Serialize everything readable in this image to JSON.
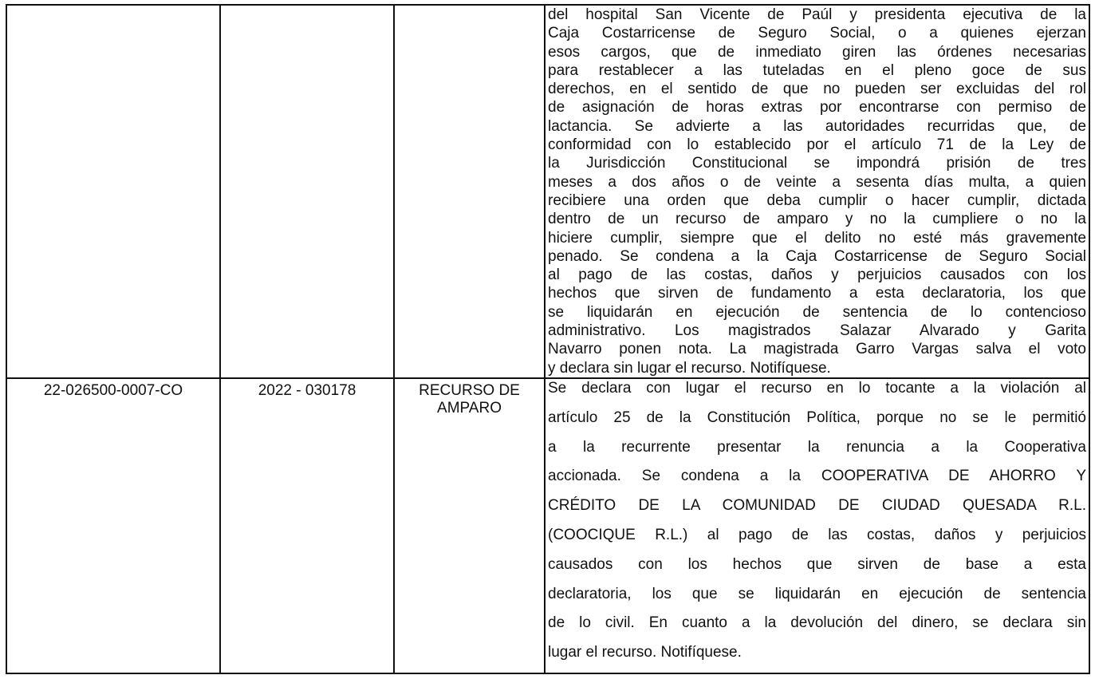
{
  "table": {
    "rows": [
      {
        "ruling_lines": [
          "del hospital San Vicente de Paúl y presidenta ejecutiva de la",
          "Caja Costarricense de Seguro Social, o a quienes ejerzan",
          "esos cargos, que de inmediato giren las órdenes necesarias",
          "para restablecer a las tuteladas en el pleno goce de sus",
          "derechos, en el sentido de que no pueden ser excluidas del rol",
          "de asignación de horas extras por encontrarse con permiso de",
          "lactancia. Se advierte a las autoridades recurridas que, de",
          "conformidad con lo establecido por el artículo 71 de la Ley de",
          "la Jurisdicción Constitucional se impondrá prisión de tres",
          "meses a dos años o de veinte a sesenta días multa, a quien",
          "recibiere una orden que deba cumplir o hacer cumplir, dictada",
          "dentro de un recurso de amparo y no la cumpliere o no la",
          "hiciere cumplir, siempre que el delito no esté más gravemente",
          "penado. Se condena a la Caja Costarricense de Seguro Social",
          "al pago de las costas, daños y perjuicios causados con los",
          "hechos que sirven de fundamento a esta declaratoria, los que",
          "se liquidarán en ejecución de sentencia de lo contencioso",
          "administrativo. Los magistrados Salazar Alvarado y Garita",
          "Navarro ponen nota. La magistrada Garro Vargas salva el voto",
          "y declara sin lugar el recurso. Notifíquese."
        ]
      },
      {
        "case_number": "22-026500-0007-CO",
        "resolution": "2022 - 030178",
        "type": "RECURSO DE AMPARO",
        "ruling_lines": [
          "Se declara con lugar el recurso en lo tocante a la violación al",
          "artículo 25 de la Constitución Política, porque no se le permitió",
          "a la recurrente presentar la renuncia a la Cooperativa",
          "accionada. Se condena a la COOPERATIVA DE AHORRO Y",
          "CRÉDITO DE LA COMUNIDAD DE CIUDAD QUESADA R.L.",
          "(COOCIQUE R.L.) al pago de las costas, daños y perjuicios",
          "causados con los hechos que sirven de base a esta",
          "declaratoria, los que se liquidarán en ejecución de sentencia",
          "de lo civil. En cuanto a la devolución del dinero, se declara sin",
          "lugar el recurso. Notifíquese."
        ]
      }
    ]
  }
}
